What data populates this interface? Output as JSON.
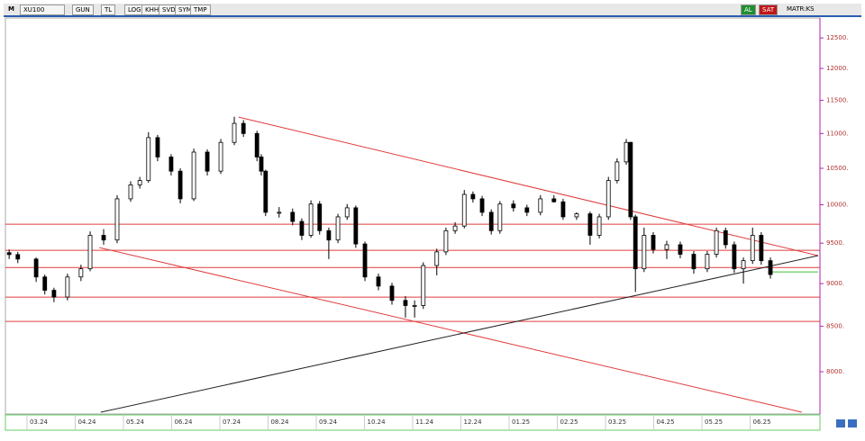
{
  "toolbar": {
    "symbol": "XU100",
    "mode": "M",
    "buttons": [
      "GUN",
      "TL",
      "LOG",
      "KHH",
      "SVD",
      "SYM",
      "TMP"
    ],
    "buy": "AL",
    "sell": "SAT",
    "matrix": "MATR:KS"
  },
  "chart_data": {
    "type": "candlestick",
    "log_scale": true,
    "up_color": "#ffffff",
    "down_color": "#000000",
    "line_color": "#000000",
    "xlim": [
      -0.41,
      16.41
    ],
    "xticks": [
      {
        "value": 0,
        "label": "03.24"
      },
      {
        "value": 1,
        "label": "04.24"
      },
      {
        "value": 2,
        "label": "05.24"
      },
      {
        "value": 3,
        "label": "06.24"
      },
      {
        "value": 4,
        "label": "07.24"
      },
      {
        "value": 5,
        "label": "08.24"
      },
      {
        "value": 6,
        "label": "09.24"
      },
      {
        "value": 7,
        "label": "10.24"
      },
      {
        "value": 8,
        "label": "11.24"
      },
      {
        "value": 9,
        "label": "12.24"
      },
      {
        "value": 10,
        "label": "01.25"
      },
      {
        "value": 11,
        "label": "02.25"
      },
      {
        "value": 12,
        "label": "03.25"
      },
      {
        "value": 13,
        "label": "04.25"
      },
      {
        "value": 14,
        "label": "05.25"
      },
      {
        "value": 15,
        "label": "06.25"
      }
    ],
    "ylim": [
      7560,
      12930
    ],
    "yticks": [
      {
        "value": 8000,
        "label": "8000."
      },
      {
        "value": 8500,
        "label": "8500."
      },
      {
        "value": 9000,
        "label": "9000."
      },
      {
        "value": 9500,
        "label": "9500."
      },
      {
        "value": 10000,
        "label": "10000."
      },
      {
        "value": 10500,
        "label": "10500."
      },
      {
        "value": 11000,
        "label": "11000."
      },
      {
        "value": 11500,
        "label": "11500."
      },
      {
        "value": 12000,
        "label": "12000."
      },
      {
        "value": 12500,
        "label": "12500."
      }
    ],
    "x": [
      -0.37,
      -0.19,
      0.19,
      0.37,
      0.56,
      0.84,
      1.12,
      1.31,
      1.59,
      1.87,
      2.15,
      2.34,
      2.52,
      2.71,
      2.99,
      3.18,
      3.46,
      3.74,
      4.02,
      4.3,
      4.49,
      4.77,
      4.86,
      4.95,
      5.23,
      5.51,
      5.7,
      5.89,
      6.07,
      6.26,
      6.45,
      6.64,
      6.82,
      7.01,
      7.29,
      7.57,
      7.85,
      8.04,
      8.22,
      8.5,
      8.69,
      8.88,
      9.07,
      9.25,
      9.44,
      9.63,
      9.81,
      10.09,
      10.37,
      10.65,
      10.93,
      11.12,
      11.4,
      11.68,
      11.87,
      12.06,
      12.24,
      12.43,
      12.52,
      12.62,
      12.8,
      12.99,
      13.27,
      13.55,
      13.83,
      14.11,
      14.3,
      14.49,
      14.67,
      14.86,
      15.05,
      15.23,
      15.42
    ],
    "open": [
      9380,
      9356,
      9300,
      9080,
      8920,
      8840,
      9080,
      9180,
      9600,
      9540,
      10080,
      10270,
      10330,
      10940,
      10660,
      10460,
      10080,
      10730,
      10460,
      10870,
      11150,
      11000,
      10660,
      10460,
      9900,
      9900,
      9780,
      9600,
      10010,
      9660,
      9540,
      9840,
      9960,
      9490,
      9080,
      8970,
      8800,
      8740,
      8740,
      9220,
      9390,
      9660,
      9720,
      10140,
      10080,
      9900,
      9660,
      10010,
      9960,
      9900,
      10080,
      10040,
      9840,
      9880,
      9600,
      9840,
      10330,
      10590,
      10870,
      9840,
      9180,
      9600,
      9420,
      9480,
      9360,
      9180,
      9360,
      9660,
      9480,
      9180,
      9280,
      9600,
      9280
    ],
    "high": [
      9420,
      9390,
      9320,
      9110,
      8950,
      9120,
      9230,
      9650,
      9680,
      10130,
      10320,
      10380,
      11020,
      10980,
      10700,
      10500,
      10780,
      10770,
      10920,
      11250,
      11200,
      11040,
      10700,
      10480,
      9970,
      9950,
      9820,
      10060,
      10050,
      9700,
      9880,
      10010,
      9990,
      9520,
      9120,
      9010,
      8850,
      8800,
      9260,
      9430,
      9700,
      9770,
      10200,
      10180,
      10120,
      9940,
      10050,
      10060,
      10000,
      10130,
      10130,
      10080,
      9900,
      9910,
      9880,
      10380,
      10640,
      10920,
      10880,
      9870,
      9700,
      9640,
      9530,
      9520,
      9400,
      9400,
      9700,
      9700,
      9520,
      9320,
      9700,
      9640,
      9320
    ],
    "low": [
      9300,
      9250,
      9020,
      8870,
      8780,
      8800,
      9030,
      9150,
      9480,
      9500,
      10040,
      10220,
      10300,
      10600,
      10400,
      10020,
      10050,
      10400,
      10420,
      10830,
      10950,
      10600,
      10400,
      9850,
      9830,
      9730,
      9540,
      9570,
      9610,
      9300,
      9500,
      9800,
      9440,
      9030,
      8920,
      8750,
      8600,
      8600,
      8700,
      9100,
      9350,
      9620,
      9690,
      10030,
      9850,
      9610,
      9620,
      9910,
      9850,
      9860,
      10030,
      9800,
      9800,
      9480,
      9560,
      9800,
      10290,
      10550,
      9800,
      8900,
      9140,
      9370,
      9300,
      9310,
      9120,
      9140,
      9320,
      9430,
      9130,
      9000,
      9240,
      9230,
      9060
    ],
    "close": [
      9356,
      9300,
      9080,
      8920,
      8840,
      9080,
      9180,
      9600,
      9540,
      10080,
      10270,
      10330,
      10940,
      10660,
      10460,
      10080,
      10730,
      10460,
      10870,
      11150,
      11000,
      10660,
      10460,
      9900,
      9900,
      9780,
      9600,
      10010,
      9660,
      9540,
      9840,
      9960,
      9490,
      9080,
      8970,
      8800,
      8740,
      8740,
      9220,
      9390,
      9660,
      9720,
      10140,
      10080,
      9900,
      9660,
      10010,
      9960,
      9900,
      10080,
      10040,
      9840,
      9880,
      9600,
      9840,
      10330,
      10590,
      10870,
      9840,
      9180,
      9600,
      9420,
      9480,
      9360,
      9180,
      9360,
      9660,
      9480,
      9180,
      9280,
      9600,
      9280,
      9110
    ],
    "hlines": {
      "color": "#e03c3c",
      "values": [
        9744,
        9410,
        9196,
        8839,
        8556
      ]
    },
    "trendlines": [
      {
        "color": "#e03c3c",
        "x": [
          4.39,
          16.41
        ],
        "y": [
          11244,
          9343
        ]
      },
      {
        "color": "#e03c3c",
        "x": [
          1.5,
          16.07
        ],
        "y": [
          9444,
          7578
        ]
      },
      {
        "color": "#222222",
        "x": [
          1.53,
          16.41
        ],
        "y": [
          7578,
          9343
        ]
      },
      {
        "color": "#3cc03c",
        "x": [
          15.42,
          16.41
        ],
        "y": [
          9142,
          9142
        ]
      }
    ]
  }
}
